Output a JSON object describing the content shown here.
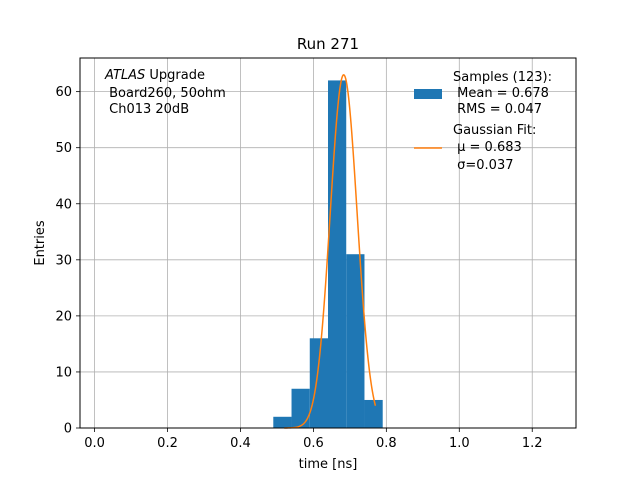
{
  "chart_data": {
    "type": "bar",
    "title": "Run 271",
    "xlabel": "time [ns]",
    "ylabel": "Entries",
    "xlim": [
      -0.04,
      1.32
    ],
    "ylim": [
      0,
      66
    ],
    "xticks": [
      0.0,
      0.2,
      0.4,
      0.6,
      0.8,
      1.0,
      1.2
    ],
    "xtick_labels": [
      "0.0",
      "0.2",
      "0.4",
      "0.6",
      "0.8",
      "1.0",
      "1.2"
    ],
    "yticks": [
      0,
      10,
      20,
      30,
      40,
      50,
      60
    ],
    "ytick_labels": [
      "0",
      "10",
      "20",
      "30",
      "40",
      "50",
      "60"
    ],
    "grid": true,
    "legend_position": "upper-right",
    "histogram": {
      "color": "#1f77b4",
      "bins": [
        {
          "x0": 0.49,
          "x1": 0.54,
          "count": 2
        },
        {
          "x0": 0.54,
          "x1": 0.59,
          "count": 7
        },
        {
          "x0": 0.59,
          "x1": 0.64,
          "count": 16
        },
        {
          "x0": 0.64,
          "x1": 0.69,
          "count": 62
        },
        {
          "x0": 0.69,
          "x1": 0.74,
          "count": 31
        },
        {
          "x0": 0.74,
          "x1": 0.79,
          "count": 5
        }
      ],
      "legend_lines": [
        "Samples (123):",
        " Mean = 0.678",
        " RMS = 0.047"
      ]
    },
    "fit": {
      "color": "#ff7f0e",
      "mu": 0.683,
      "sigma": 0.037,
      "amplitude": 63,
      "x_range": [
        0.52,
        0.77
      ],
      "legend_lines": [
        "Gaussian Fit:",
        " μ = 0.683",
        " σ=0.037"
      ]
    },
    "annotation": {
      "italic": "ATLAS",
      "rest": " Upgrade",
      "lines": [
        " Board260, 50ohm",
        " Ch013 20dB"
      ]
    }
  }
}
